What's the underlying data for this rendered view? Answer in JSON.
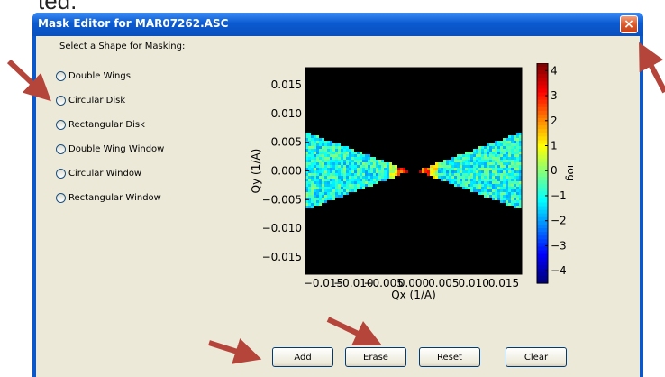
{
  "partial_text": "ted.",
  "window": {
    "title": "Mask Editor for MAR07262.ASC",
    "close_label": "×"
  },
  "panel": {
    "label": "Select a Shape for Masking:",
    "shapes": [
      "Double Wings",
      "Circular Disk",
      "Rectangular Disk",
      "Double Wing Window",
      "Circular Window",
      "Rectangular Window"
    ]
  },
  "buttons": {
    "add": "Add",
    "erase": "Erase",
    "reset": "Reset",
    "clear": "Clear"
  },
  "colors": {
    "title_bar": "#0a58c9",
    "client": "#ece9d8",
    "arrow": "#b5443a",
    "close": "#e05a2a"
  },
  "chart_data": {
    "type": "heatmap",
    "title": "",
    "xlabel": "Qx  (1/A)",
    "ylabel": "Qy  (1/A)",
    "xlim": [
      -0.018,
      0.018
    ],
    "ylim": [
      -0.018,
      0.018
    ],
    "xticks": [
      -0.015,
      -0.01,
      -0.005,
      0.0,
      0.005,
      0.01,
      0.015
    ],
    "xtick_labels": [
      "−0.015",
      "−0.010",
      "−0.005",
      "0.000",
      "0.005",
      "0.010",
      "0.015"
    ],
    "yticks": [
      0.015,
      0.01,
      0.005,
      0.0,
      -0.005,
      -0.01,
      -0.015
    ],
    "ytick_labels": [
      "0.015",
      "0.010",
      "0.005",
      "0.000",
      "−0.005",
      "−0.010",
      "−0.015"
    ],
    "colorbar": {
      "label": "log",
      "range": [
        -4.5,
        4.3
      ],
      "ticks": [
        4,
        3,
        2,
        1,
        0,
        -1,
        -2,
        -3,
        -4
      ],
      "tick_labels": [
        "4",
        "3",
        "2",
        "1",
        "0",
        "−1",
        "−2",
        "−3",
        "−4"
      ]
    },
    "colormap": "jet",
    "background": "#000000",
    "features": [
      {
        "name": "left wing",
        "apex_x": -0.0005,
        "outer_x": -0.018,
        "half_height_at_outer": 0.0068
      },
      {
        "name": "right wing",
        "apex_x": 0.0005,
        "outer_x": 0.018,
        "half_height_at_outer": 0.0068
      }
    ]
  }
}
